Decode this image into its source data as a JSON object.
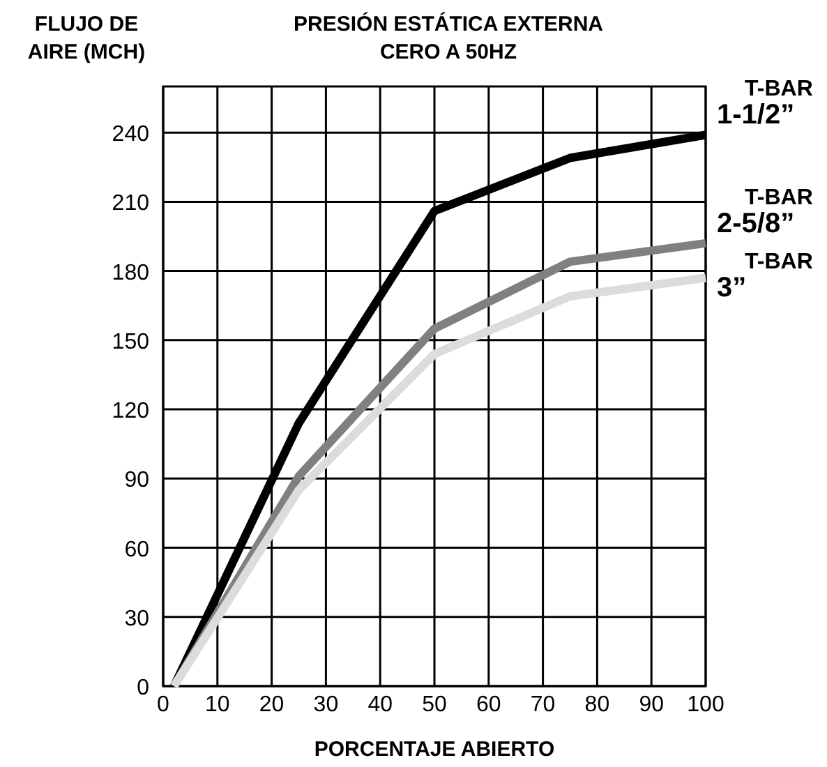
{
  "chart_data": {
    "type": "line",
    "title": "PRESIÓN ESTÁTICA EXTERNA\nCERO A 50HZ",
    "xlabel": "PORCENTAJE ABIERTO",
    "ylabel": "FLUJO DE\nAIRE (MCH)",
    "x": [
      2,
      25,
      50,
      75,
      100
    ],
    "series": [
      {
        "name": "T-BAR\n1-1/2”",
        "color": "#000000",
        "values": [
          0,
          114,
          206,
          229,
          239
        ]
      },
      {
        "name": "T-BAR\n2-5/8”",
        "color": "#808080",
        "values": [
          0,
          91,
          155,
          184,
          192
        ]
      },
      {
        "name": "T-BAR\n3”",
        "color": "#dcdcdc",
        "values": [
          0,
          85,
          144,
          169,
          177
        ]
      }
    ],
    "xlim": [
      0,
      100
    ],
    "xticks": [
      0,
      10,
      20,
      30,
      40,
      50,
      60,
      70,
      80,
      90,
      100
    ],
    "ylim": [
      0,
      260
    ],
    "yticks": [
      0,
      30,
      60,
      90,
      120,
      150,
      180,
      210,
      240
    ],
    "grid": true,
    "legend": "right",
    "marker": "none",
    "line_style": "solid"
  }
}
